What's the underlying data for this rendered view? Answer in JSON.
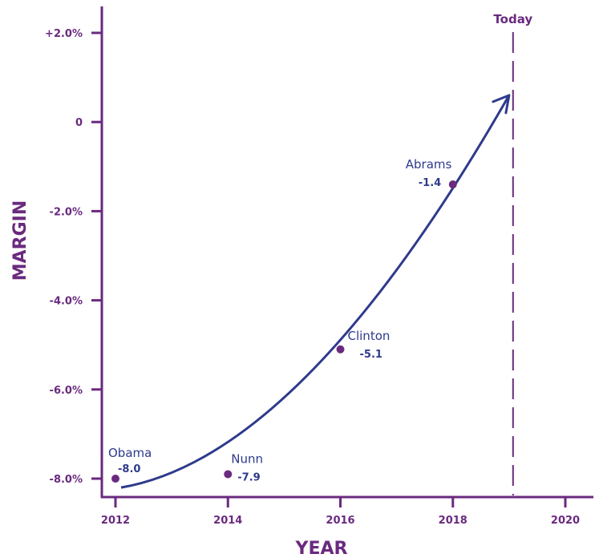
{
  "chart_data": {
    "type": "scatter",
    "xlabel": "YEAR",
    "ylabel": "MARGIN",
    "xlim": [
      2012,
      2020
    ],
    "ylim": [
      -8.0,
      2.0
    ],
    "x_ticks": [
      2012,
      2014,
      2016,
      2018,
      2020
    ],
    "x_tick_labels": [
      "2012",
      "2014",
      "2016",
      "2018",
      "2020"
    ],
    "y_ticks": [
      2.0,
      0,
      -2.0,
      -4.0,
      -6.0,
      -8.0
    ],
    "y_tick_labels": [
      "+2.0%",
      "0",
      "-2.0%",
      "-4.0%",
      "-6.0%",
      "-8.0%"
    ],
    "points": [
      {
        "label": "Obama",
        "x": 2012,
        "y": -8.0,
        "value_label": "-8.0"
      },
      {
        "label": "Nunn",
        "x": 2014,
        "y": -7.9,
        "value_label": "-7.9"
      },
      {
        "label": "Clinton",
        "x": 2016,
        "y": -5.1,
        "value_label": "-5.1"
      },
      {
        "label": "Abrams",
        "x": 2018,
        "y": -1.4,
        "value_label": "-1.4"
      }
    ],
    "reference_line": {
      "label": "Today",
      "x": 2019.07
    },
    "trend_arrow": {
      "from": [
        2012.1,
        -8.2
      ],
      "to": [
        2019.0,
        0.6
      ]
    },
    "grid": false,
    "colors": {
      "axis": "#6a2a7f",
      "points": "#6a2a7f",
      "labels": "#2e3a8c",
      "arrow": "#2e3a8c"
    }
  }
}
